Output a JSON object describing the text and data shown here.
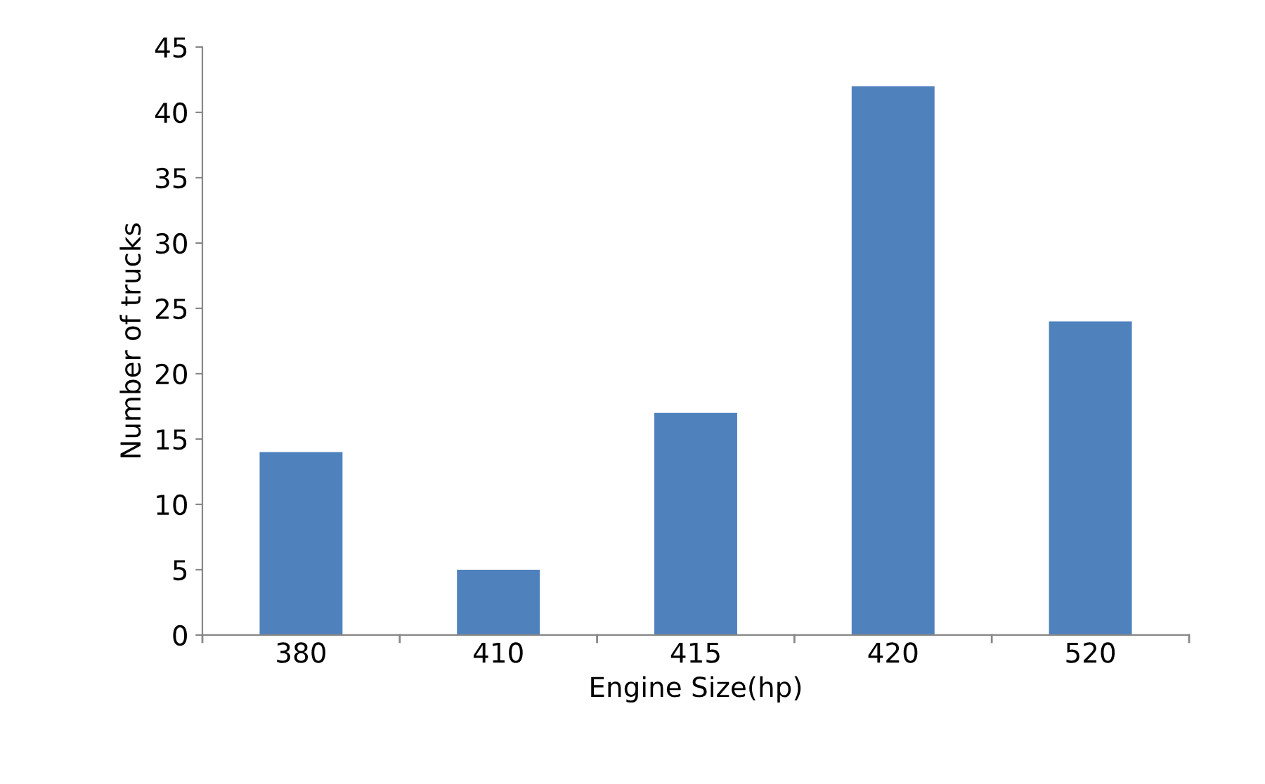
{
  "chart_data": {
    "type": "bar",
    "xlabel": "Engine Size(hp)",
    "ylabel": "Number of trucks",
    "categories": [
      "380",
      "410",
      "415",
      "420",
      "520"
    ],
    "values": [
      14,
      5,
      17,
      42,
      24
    ],
    "color": "#4f81bd",
    "ylim": [
      0,
      45
    ],
    "yticks": [
      0,
      5,
      10,
      15,
      20,
      25,
      30,
      35,
      40,
      45
    ],
    "grid": false,
    "legend": false
  }
}
